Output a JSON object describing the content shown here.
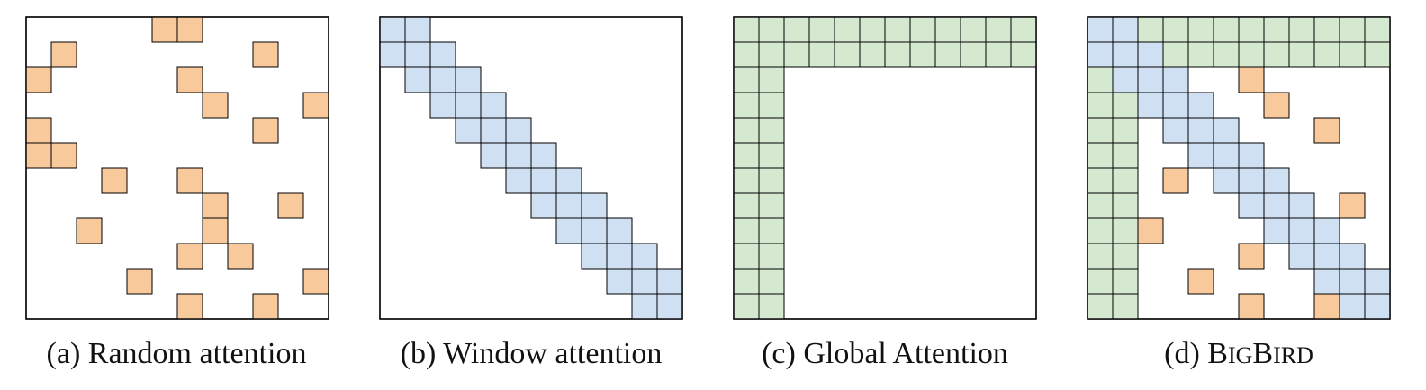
{
  "colors": {
    "random": "#f8c99b",
    "window": "#cfe0f3",
    "global": "#d5e8d0",
    "frame": "#000000",
    "background": "#ffffff"
  },
  "grid_size": 12,
  "panels": [
    {
      "id": "random",
      "caption": "(a) Random attention",
      "cells": [
        {
          "r": 0,
          "c": 5,
          "type": "random"
        },
        {
          "r": 0,
          "c": 6,
          "type": "random"
        },
        {
          "r": 1,
          "c": 1,
          "type": "random"
        },
        {
          "r": 1,
          "c": 9,
          "type": "random"
        },
        {
          "r": 2,
          "c": 0,
          "type": "random"
        },
        {
          "r": 2,
          "c": 6,
          "type": "random"
        },
        {
          "r": 3,
          "c": 7,
          "type": "random"
        },
        {
          "r": 3,
          "c": 11,
          "type": "random"
        },
        {
          "r": 4,
          "c": 0,
          "type": "random"
        },
        {
          "r": 4,
          "c": 9,
          "type": "random"
        },
        {
          "r": 5,
          "c": 0,
          "type": "random"
        },
        {
          "r": 5,
          "c": 1,
          "type": "random"
        },
        {
          "r": 6,
          "c": 3,
          "type": "random"
        },
        {
          "r": 6,
          "c": 6,
          "type": "random"
        },
        {
          "r": 7,
          "c": 7,
          "type": "random"
        },
        {
          "r": 7,
          "c": 10,
          "type": "random"
        },
        {
          "r": 8,
          "c": 2,
          "type": "random"
        },
        {
          "r": 8,
          "c": 7,
          "type": "random"
        },
        {
          "r": 9,
          "c": 6,
          "type": "random"
        },
        {
          "r": 9,
          "c": 8,
          "type": "random"
        },
        {
          "r": 10,
          "c": 4,
          "type": "random"
        },
        {
          "r": 10,
          "c": 11,
          "type": "random"
        },
        {
          "r": 11,
          "c": 6,
          "type": "random"
        },
        {
          "r": 11,
          "c": 9,
          "type": "random"
        }
      ]
    },
    {
      "id": "window",
      "caption": "(b) Window attention",
      "cells": [
        {
          "r": 0,
          "c": 0,
          "type": "window"
        },
        {
          "r": 0,
          "c": 1,
          "type": "window"
        },
        {
          "r": 1,
          "c": 0,
          "type": "window"
        },
        {
          "r": 1,
          "c": 1,
          "type": "window"
        },
        {
          "r": 1,
          "c": 2,
          "type": "window"
        },
        {
          "r": 2,
          "c": 1,
          "type": "window"
        },
        {
          "r": 2,
          "c": 2,
          "type": "window"
        },
        {
          "r": 2,
          "c": 3,
          "type": "window"
        },
        {
          "r": 3,
          "c": 2,
          "type": "window"
        },
        {
          "r": 3,
          "c": 3,
          "type": "window"
        },
        {
          "r": 3,
          "c": 4,
          "type": "window"
        },
        {
          "r": 4,
          "c": 3,
          "type": "window"
        },
        {
          "r": 4,
          "c": 4,
          "type": "window"
        },
        {
          "r": 4,
          "c": 5,
          "type": "window"
        },
        {
          "r": 5,
          "c": 4,
          "type": "window"
        },
        {
          "r": 5,
          "c": 5,
          "type": "window"
        },
        {
          "r": 5,
          "c": 6,
          "type": "window"
        },
        {
          "r": 6,
          "c": 5,
          "type": "window"
        },
        {
          "r": 6,
          "c": 6,
          "type": "window"
        },
        {
          "r": 6,
          "c": 7,
          "type": "window"
        },
        {
          "r": 7,
          "c": 6,
          "type": "window"
        },
        {
          "r": 7,
          "c": 7,
          "type": "window"
        },
        {
          "r": 7,
          "c": 8,
          "type": "window"
        },
        {
          "r": 8,
          "c": 7,
          "type": "window"
        },
        {
          "r": 8,
          "c": 8,
          "type": "window"
        },
        {
          "r": 8,
          "c": 9,
          "type": "window"
        },
        {
          "r": 9,
          "c": 8,
          "type": "window"
        },
        {
          "r": 9,
          "c": 9,
          "type": "window"
        },
        {
          "r": 9,
          "c": 10,
          "type": "window"
        },
        {
          "r": 10,
          "c": 9,
          "type": "window"
        },
        {
          "r": 10,
          "c": 10,
          "type": "window"
        },
        {
          "r": 10,
          "c": 11,
          "type": "window"
        },
        {
          "r": 11,
          "c": 10,
          "type": "window"
        },
        {
          "r": 11,
          "c": 11,
          "type": "window"
        }
      ]
    },
    {
      "id": "global",
      "caption": "(c) Global Attention",
      "global_rows": 2,
      "global_cols": 2,
      "cells": []
    },
    {
      "id": "bigbird",
      "caption_prefix": "(d) ",
      "caption_parts": [
        "B",
        "IG",
        "B",
        "IRD"
      ],
      "global_rows": 2,
      "global_cols": 2,
      "cells": [
        {
          "r": 0,
          "c": 0,
          "type": "window"
        },
        {
          "r": 0,
          "c": 1,
          "type": "window"
        },
        {
          "r": 1,
          "c": 0,
          "type": "window"
        },
        {
          "r": 1,
          "c": 1,
          "type": "window"
        },
        {
          "r": 1,
          "c": 2,
          "type": "window"
        },
        {
          "r": 2,
          "c": 1,
          "type": "window"
        },
        {
          "r": 2,
          "c": 2,
          "type": "window"
        },
        {
          "r": 2,
          "c": 3,
          "type": "window"
        },
        {
          "r": 3,
          "c": 2,
          "type": "window"
        },
        {
          "r": 3,
          "c": 3,
          "type": "window"
        },
        {
          "r": 3,
          "c": 4,
          "type": "window"
        },
        {
          "r": 4,
          "c": 3,
          "type": "window"
        },
        {
          "r": 4,
          "c": 4,
          "type": "window"
        },
        {
          "r": 4,
          "c": 5,
          "type": "window"
        },
        {
          "r": 5,
          "c": 4,
          "type": "window"
        },
        {
          "r": 5,
          "c": 5,
          "type": "window"
        },
        {
          "r": 5,
          "c": 6,
          "type": "window"
        },
        {
          "r": 6,
          "c": 5,
          "type": "window"
        },
        {
          "r": 6,
          "c": 6,
          "type": "window"
        },
        {
          "r": 6,
          "c": 7,
          "type": "window"
        },
        {
          "r": 7,
          "c": 6,
          "type": "window"
        },
        {
          "r": 7,
          "c": 7,
          "type": "window"
        },
        {
          "r": 7,
          "c": 8,
          "type": "window"
        },
        {
          "r": 8,
          "c": 7,
          "type": "window"
        },
        {
          "r": 8,
          "c": 8,
          "type": "window"
        },
        {
          "r": 8,
          "c": 9,
          "type": "window"
        },
        {
          "r": 9,
          "c": 8,
          "type": "window"
        },
        {
          "r": 9,
          "c": 9,
          "type": "window"
        },
        {
          "r": 9,
          "c": 10,
          "type": "window"
        },
        {
          "r": 10,
          "c": 9,
          "type": "window"
        },
        {
          "r": 10,
          "c": 10,
          "type": "window"
        },
        {
          "r": 10,
          "c": 11,
          "type": "window"
        },
        {
          "r": 11,
          "c": 10,
          "type": "window"
        },
        {
          "r": 11,
          "c": 11,
          "type": "window"
        },
        {
          "r": 2,
          "c": 6,
          "type": "random"
        },
        {
          "r": 3,
          "c": 7,
          "type": "random"
        },
        {
          "r": 4,
          "c": 9,
          "type": "random"
        },
        {
          "r": 6,
          "c": 3,
          "type": "random"
        },
        {
          "r": 7,
          "c": 10,
          "type": "random"
        },
        {
          "r": 8,
          "c": 2,
          "type": "random"
        },
        {
          "r": 9,
          "c": 6,
          "type": "random"
        },
        {
          "r": 10,
          "c": 4,
          "type": "random"
        },
        {
          "r": 11,
          "c": 6,
          "type": "random"
        },
        {
          "r": 11,
          "c": 9,
          "type": "random"
        }
      ]
    }
  ]
}
